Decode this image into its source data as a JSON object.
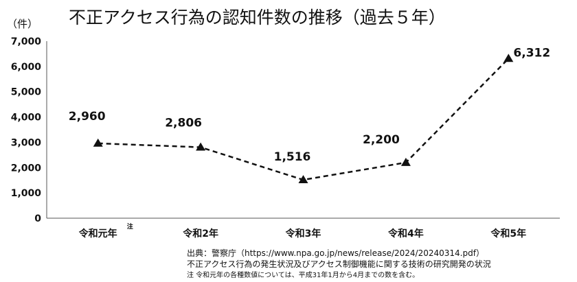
{
  "chart_data": {
    "type": "line",
    "title": "不正アクセス行為の認知件数の推移（過去５年）",
    "ylabel": "（件）",
    "categories": [
      "令和元年",
      "令和2年",
      "令和3年",
      "令和4年",
      "令和5年"
    ],
    "category_note": "注",
    "category_note_index": 0,
    "series": [
      {
        "values": [
          2960,
          2806,
          1516,
          2200,
          6312
        ]
      }
    ],
    "data_labels": [
      "2,960",
      "2,806",
      "1,516",
      "2,200",
      "6,312"
    ],
    "ylim": [
      0,
      7000
    ],
    "yticks": [
      0,
      1000,
      2000,
      3000,
      4000,
      5000,
      6000,
      7000
    ],
    "ytick_labels": [
      "0",
      "1,000",
      "2,000",
      "3,000",
      "4,000",
      "5,000",
      "6,000",
      "7,000"
    ],
    "grid": false,
    "line_style": "dashed",
    "marker": "triangle",
    "line_color": "#111111"
  },
  "source": {
    "line1": "出典：警察庁（https://www.npa.go.jp/news/release/2024/20240314.pdf）",
    "line2": "不正アクセス行為の発生状況及びアクセス制御機能に関する技術の研究開発の状況",
    "note": "注 令和元年の各種数値については、平成31年1月から4月までの数を含む。"
  }
}
